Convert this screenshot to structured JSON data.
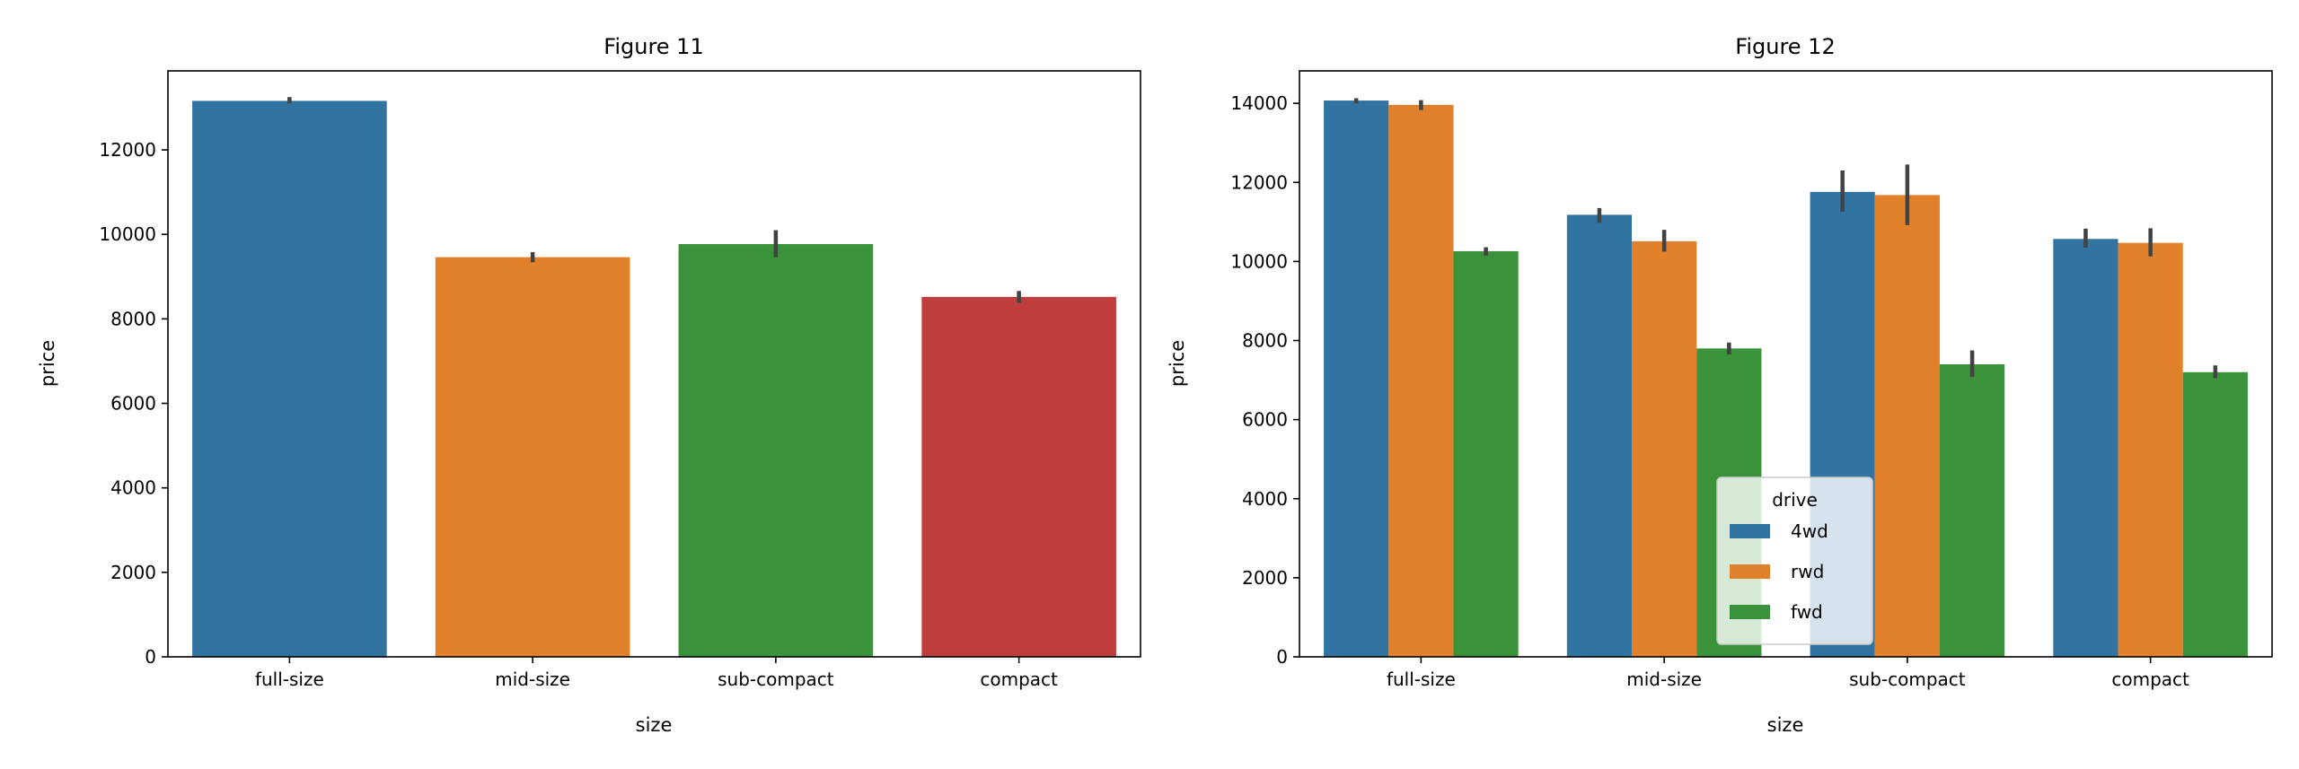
{
  "chart_data": [
    {
      "type": "bar",
      "title": "Figure 11",
      "xlabel": "size",
      "ylabel": "price",
      "categories": [
        "full-size",
        "mid-size",
        "sub-compact",
        "compact"
      ],
      "values": [
        13160,
        9460,
        9770,
        8520
      ],
      "error_bars": [
        [
          13100,
          13250
        ],
        [
          9340,
          9580
        ],
        [
          9460,
          10100
        ],
        [
          8380,
          8660
        ]
      ],
      "colors": [
        "#3274a1",
        "#e1812c",
        "#3a923a",
        "#c03d3e"
      ],
      "ylim": [
        0,
        13870
      ],
      "yticks": [
        0,
        2000,
        4000,
        6000,
        8000,
        10000,
        12000
      ],
      "grid": false
    },
    {
      "type": "bar",
      "title": "Figure 12",
      "xlabel": "size",
      "ylabel": "price",
      "categories": [
        "full-size",
        "mid-size",
        "sub-compact",
        "compact"
      ],
      "legend": {
        "title": "drive",
        "placement": "lower center"
      },
      "series": [
        {
          "name": "4wd",
          "color": "#3274a1",
          "values": [
            14070,
            11180,
            11760,
            10570
          ],
          "error_bars": [
            [
              14000,
              14130
            ],
            [
              10980,
              11350
            ],
            [
              11260,
              12300
            ],
            [
              10350,
              10830
            ]
          ]
        },
        {
          "name": "rwd",
          "color": "#e1812c",
          "values": [
            13960,
            10510,
            11680,
            10470
          ],
          "error_bars": [
            [
              13830,
              14080
            ],
            [
              10250,
              10800
            ],
            [
              10920,
              12450
            ],
            [
              10130,
              10840
            ]
          ]
        },
        {
          "name": "fwd",
          "color": "#3a923a",
          "values": [
            10260,
            7800,
            7400,
            7200
          ],
          "error_bars": [
            [
              10150,
              10360
            ],
            [
              7650,
              7950
            ],
            [
              7080,
              7750
            ],
            [
              7050,
              7370
            ]
          ]
        }
      ],
      "ylim": [
        0,
        14820
      ],
      "yticks": [
        0,
        2000,
        4000,
        6000,
        8000,
        10000,
        12000,
        14000
      ],
      "grid": false
    }
  ]
}
